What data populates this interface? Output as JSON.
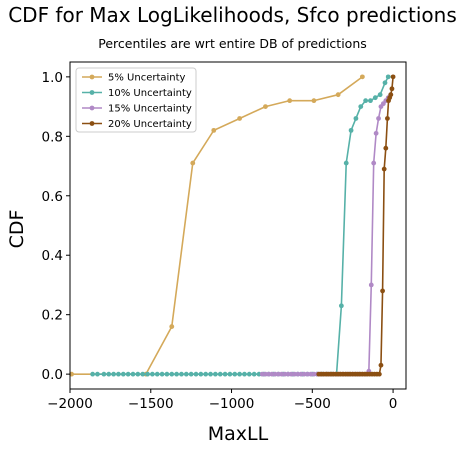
{
  "chart_data": {
    "type": "line",
    "title": "CDF for Max LogLikelihoods, Sfco predictions",
    "subtitle": "Percentiles are wrt entire DB of predictions",
    "xlabel": "MaxLL",
    "ylabel": "CDF",
    "xlim": [
      -2000,
      80
    ],
    "ylim": [
      -0.05,
      1.05
    ],
    "xticks": [
      -2000,
      -1500,
      -1000,
      -500,
      0
    ],
    "xtick_labels": [
      "−2000",
      "−1500",
      "−1000",
      "−500",
      "0"
    ],
    "yticks": [
      0.0,
      0.2,
      0.4,
      0.6,
      0.8,
      1.0
    ],
    "ytick_labels": [
      "0.0",
      "0.2",
      "0.4",
      "0.6",
      "0.8",
      "1.0"
    ],
    "grid": false,
    "legend_position": "top-left",
    "series": [
      {
        "name": "5% Uncertainty",
        "color": "#d4a95a",
        "x": [
          -1990,
          -1530,
          -1370,
          -1240,
          -1110,
          -950,
          -790,
          -640,
          -490,
          -340,
          -190
        ],
        "y": [
          0.0,
          0.0,
          0.16,
          0.71,
          0.82,
          0.86,
          0.9,
          0.92,
          0.92,
          0.94,
          1.0
        ]
      },
      {
        "name": "10% Uncertainty",
        "color": "#56b1a8",
        "x": [
          -1860,
          -1830,
          -1790,
          -1760,
          -1730,
          -1700,
          -1670,
          -1640,
          -1610,
          -1580,
          -1550,
          -1520,
          -1490,
          -1460,
          -1430,
          -1400,
          -1370,
          -1340,
          -1310,
          -1280,
          -1250,
          -1220,
          -1190,
          -1160,
          -1130,
          -1100,
          -1070,
          -1040,
          -1010,
          -980,
          -950,
          -920,
          -890,
          -860,
          -830,
          -800,
          -770,
          -740,
          -710,
          -680,
          -650,
          -620,
          -590,
          -560,
          -530,
          -500,
          -470,
          -440,
          -410,
          -380,
          -350,
          -320,
          -290,
          -260,
          -230,
          -200,
          -170,
          -140,
          -110,
          -80,
          -50,
          -30
        ],
        "y": [
          0.0,
          0.0,
          0.0,
          0.0,
          0.0,
          0.0,
          0.0,
          0.0,
          0.0,
          0.0,
          0.0,
          0.0,
          0.0,
          0.0,
          0.0,
          0.0,
          0.0,
          0.0,
          0.0,
          0.0,
          0.0,
          0.0,
          0.0,
          0.0,
          0.0,
          0.0,
          0.0,
          0.0,
          0.0,
          0.0,
          0.0,
          0.0,
          0.0,
          0.0,
          0.0,
          0.0,
          0.0,
          0.0,
          0.0,
          0.0,
          0.0,
          0.0,
          0.0,
          0.0,
          0.0,
          0.0,
          0.0,
          0.0,
          0.0,
          0.0,
          0.0,
          0.23,
          0.71,
          0.82,
          0.86,
          0.9,
          0.92,
          0.92,
          0.93,
          0.94,
          0.98,
          1.0
        ]
      },
      {
        "name": "15% Uncertainty",
        "color": "#b089c6",
        "x": [
          -810,
          -790,
          -770,
          -750,
          -730,
          -710,
          -690,
          -670,
          -650,
          -630,
          -610,
          -590,
          -570,
          -550,
          -530,
          -510,
          -490,
          -470,
          -450,
          -430,
          -410,
          -390,
          -370,
          -350,
          -330,
          -310,
          -290,
          -270,
          -250,
          -230,
          -210,
          -190,
          -170,
          -150,
          -135,
          -120,
          -105,
          -90,
          -75,
          -60,
          -45,
          -30,
          -15
        ],
        "y": [
          0.0,
          0.0,
          0.0,
          0.0,
          0.0,
          0.0,
          0.0,
          0.0,
          0.0,
          0.0,
          0.0,
          0.0,
          0.0,
          0.0,
          0.0,
          0.0,
          0.0,
          0.0,
          0.0,
          0.0,
          0.0,
          0.0,
          0.0,
          0.0,
          0.0,
          0.0,
          0.0,
          0.0,
          0.0,
          0.0,
          0.0,
          0.0,
          0.0,
          0.01,
          0.3,
          0.71,
          0.81,
          0.86,
          0.9,
          0.91,
          0.92,
          0.93,
          0.94
        ]
      },
      {
        "name": "20% Uncertainty",
        "color": "#8b4f12",
        "x": [
          -460,
          -445,
          -430,
          -415,
          -400,
          -385,
          -370,
          -355,
          -340,
          -325,
          -310,
          -295,
          -280,
          -265,
          -250,
          -235,
          -220,
          -205,
          -190,
          -175,
          -160,
          -145,
          -130,
          -115,
          -100,
          -85,
          -75,
          -65,
          -55,
          -45,
          -35,
          -28,
          -21,
          -14,
          -7,
          0
        ],
        "y": [
          0.0,
          0.0,
          0.0,
          0.0,
          0.0,
          0.0,
          0.0,
          0.0,
          0.0,
          0.0,
          0.0,
          0.0,
          0.0,
          0.0,
          0.0,
          0.0,
          0.0,
          0.0,
          0.0,
          0.0,
          0.0,
          0.0,
          0.0,
          0.0,
          0.0,
          0.0,
          0.03,
          0.28,
          0.69,
          0.76,
          0.86,
          0.92,
          0.93,
          0.94,
          0.96,
          1.0
        ]
      }
    ]
  }
}
